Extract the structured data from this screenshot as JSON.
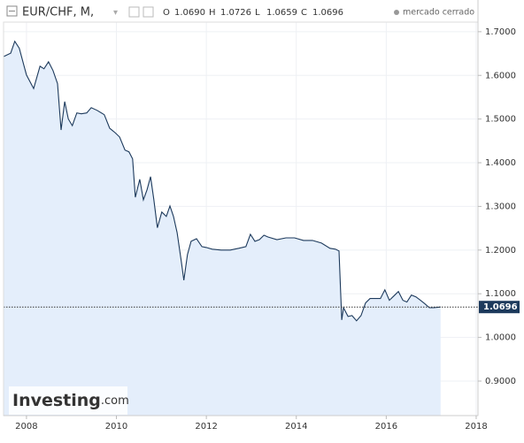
{
  "header": {
    "symbol": "EUR/CHF, M,",
    "ohlc": [
      {
        "label": "O",
        "value": "1.0690"
      },
      {
        "label": "H",
        "value": "1.0726"
      },
      {
        "label": "L",
        "value": "1.0659"
      },
      {
        "label": "C",
        "value": "1.0696"
      }
    ],
    "status": "mercado cerrado"
  },
  "logo": {
    "brand": "Investing",
    "suffix": ".com"
  },
  "chart_data": {
    "type": "area",
    "x": [
      2007.49,
      2007.65,
      2007.74,
      2007.84,
      2008.0,
      2008.16,
      2008.3,
      2008.39,
      2008.49,
      2008.59,
      2008.69,
      2008.77,
      2008.85,
      2008.93,
      2009.02,
      2009.12,
      2009.22,
      2009.34,
      2009.44,
      2009.57,
      2009.73,
      2009.85,
      2009.97,
      2010.07,
      2010.19,
      2010.28,
      2010.36,
      2010.42,
      2010.52,
      2010.6,
      2010.68,
      2010.76,
      2010.83,
      2010.91,
      2011.01,
      2011.11,
      2011.19,
      2011.27,
      2011.35,
      2011.44,
      2011.5,
      2011.58,
      2011.66,
      2011.78,
      2011.9,
      2012.0,
      2012.13,
      2012.33,
      2012.53,
      2012.72,
      2012.88,
      2012.98,
      2013.08,
      2013.18,
      2013.28,
      2013.37,
      2013.57,
      2013.77,
      2013.96,
      2014.16,
      2014.36,
      2014.56,
      2014.75,
      2014.87,
      2014.95,
      2015.01,
      2015.05,
      2015.15,
      2015.24,
      2015.34,
      2015.44,
      2015.54,
      2015.64,
      2015.78,
      2015.87,
      2015.97,
      2016.07,
      2016.17,
      2016.27,
      2016.37,
      2016.46,
      2016.56,
      2016.66,
      2016.76,
      2016.86,
      2016.96,
      2017.06,
      2017.21
    ],
    "series": [
      {
        "name": "EUR/CHF",
        "color": "#1d3a5c",
        "fill": "#e4eefb",
        "values": [
          1.643,
          1.651,
          1.678,
          1.662,
          1.601,
          1.57,
          1.621,
          1.615,
          1.631,
          1.611,
          1.581,
          1.475,
          1.54,
          1.5,
          1.485,
          1.514,
          1.512,
          1.514,
          1.526,
          1.52,
          1.51,
          1.479,
          1.469,
          1.459,
          1.429,
          1.425,
          1.409,
          1.321,
          1.362,
          1.315,
          1.338,
          1.368,
          1.317,
          1.251,
          1.287,
          1.277,
          1.301,
          1.277,
          1.24,
          1.176,
          1.131,
          1.19,
          1.22,
          1.226,
          1.208,
          1.206,
          1.202,
          1.2,
          1.2,
          1.204,
          1.208,
          1.236,
          1.22,
          1.224,
          1.234,
          1.23,
          1.224,
          1.228,
          1.228,
          1.222,
          1.222,
          1.216,
          1.204,
          1.202,
          1.198,
          1.04,
          1.068,
          1.048,
          1.05,
          1.038,
          1.05,
          1.079,
          1.089,
          1.089,
          1.089,
          1.109,
          1.085,
          1.095,
          1.105,
          1.085,
          1.081,
          1.097,
          1.093,
          1.085,
          1.077,
          1.068,
          1.068,
          1.0696
        ]
      }
    ],
    "last_value": 1.0696,
    "last_value_label": "1.0696",
    "xlim": [
      2007.49,
      2018.04
    ],
    "ylim": [
      0.821,
      1.722
    ],
    "xticks": [
      2008,
      2010,
      2012,
      2014,
      2016,
      2018
    ],
    "yticks": [
      {
        "value": 0.9,
        "label": "0.9000"
      },
      {
        "value": 1.0,
        "label": "1.0000"
      },
      {
        "value": 1.1,
        "label": "1.1000"
      },
      {
        "value": 1.2,
        "label": "1.2000"
      },
      {
        "value": 1.3,
        "label": "1.3000"
      },
      {
        "value": 1.4,
        "label": "1.4000"
      },
      {
        "value": 1.5,
        "label": "1.5000"
      },
      {
        "value": 1.6,
        "label": "1.6000"
      },
      {
        "value": 1.7,
        "label": "1.7000"
      }
    ],
    "grid": true
  }
}
